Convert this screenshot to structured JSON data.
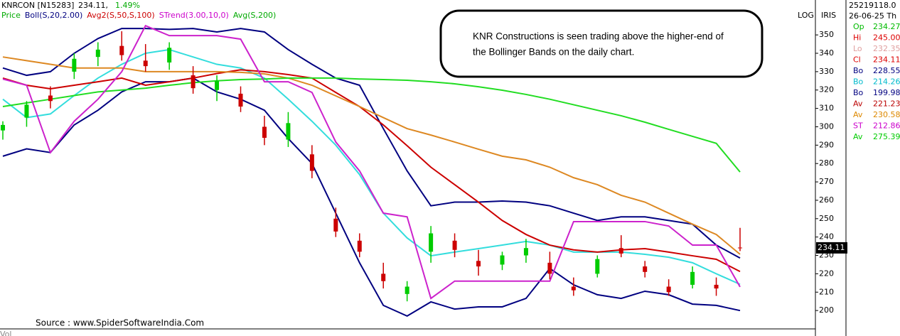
{
  "header": {
    "symbol": "KNRCON [N15283]",
    "price": "234.11,",
    "change": "1.49%",
    "legend": [
      {
        "text": "Price",
        "color": "#00aa00"
      },
      {
        "text": "Boll(S,20,2.00)",
        "color": "#000080"
      },
      {
        "text": "Avg2(S,50,S,100)",
        "color": "#cc0000"
      },
      {
        "text": "STrend(3.00,10,0)",
        "color": "#cc00cc"
      },
      {
        "text": "Avg(S,200)",
        "color": "#00aa00"
      }
    ]
  },
  "toolbar": [
    "LOG",
    "IRIS"
  ],
  "annotation": [
    "KNR Constructions is seen trading above the higher-end of",
    "the Bollinger Bands on the daily chart."
  ],
  "source": "Source : www.SpiderSoftwareIndia.Com",
  "volume_label": "Vol",
  "info_panel": {
    "volume": "25219118.0",
    "date": "26-06-25 Th",
    "rows": [
      {
        "label": "Op",
        "value": "234.27",
        "color": "#00bb00"
      },
      {
        "label": "Hi",
        "value": "245.00",
        "color": "#dd0000"
      },
      {
        "label": "Lo",
        "value": "232.35",
        "color": "#e0a0a0"
      },
      {
        "label": "Cl",
        "value": "234.11",
        "color": "#dd0000"
      },
      {
        "label": "Bo",
        "value": "228.55",
        "color": "#000080"
      },
      {
        "label": "Bo",
        "value": "214.26",
        "color": "#00bbcc"
      },
      {
        "label": "Bo",
        "value": "199.98",
        "color": "#000080"
      },
      {
        "label": "Av",
        "value": "221.23",
        "color": "#bb0000"
      },
      {
        "label": "Av",
        "value": "230.58",
        "color": "#dd8800"
      },
      {
        "label": "ST",
        "value": "212.86",
        "color": "#cc00cc"
      },
      {
        "label": "Av",
        "value": "275.39",
        "color": "#00cc00"
      }
    ]
  },
  "price_tag": "234.11",
  "chart_data": {
    "type": "candlestick",
    "categories": [
      null,
      null,
      null,
      null,
      null,
      null,
      null,
      null,
      null,
      null,
      null,
      null,
      null,
      null,
      null,
      null,
      null,
      null,
      null,
      null,
      null,
      null,
      null,
      null,
      null,
      null,
      null,
      null,
      null,
      null,
      null,
      null
    ],
    "open": [
      298,
      305,
      317,
      330,
      338,
      344,
      336,
      335,
      328,
      320,
      318,
      300,
      293,
      285,
      250,
      238,
      220,
      209,
      232,
      238,
      227,
      225,
      230,
      226,
      213,
      220,
      234,
      224,
      213,
      214,
      214,
      234.27
    ],
    "high": [
      303,
      314,
      322,
      340,
      346,
      352,
      345,
      346,
      333,
      328,
      322,
      306,
      308,
      290,
      256,
      242,
      226,
      216,
      246,
      242,
      233,
      232,
      239,
      232,
      218,
      230,
      241,
      227,
      217,
      224,
      218,
      245
    ],
    "low": [
      293,
      300,
      310,
      326,
      333,
      336,
      330,
      331,
      318,
      314,
      308,
      290,
      289,
      272,
      240,
      229,
      212,
      205,
      226,
      229,
      219,
      222,
      226,
      217,
      208,
      218,
      229,
      218,
      208,
      212,
      208,
      232.35
    ],
    "close": [
      301,
      312,
      314,
      337,
      342,
      339,
      333,
      343,
      321,
      325,
      311,
      294,
      302,
      276,
      243,
      232,
      216,
      213,
      242,
      233,
      224,
      230,
      234,
      220,
      211,
      228,
      231,
      221,
      210,
      221,
      212,
      234.11
    ],
    "up_color": "#00cc00",
    "down_color": "#cc0000",
    "overlays": [
      {
        "color": "#000080",
        "values": [
          332,
          328,
          330,
          340,
          348,
          353.5,
          353.5,
          353,
          353.5,
          351.6,
          353.5,
          351.6,
          342,
          334,
          326.5,
          322.6,
          299,
          276,
          257,
          259,
          259,
          259.6,
          259,
          257,
          253,
          249,
          251,
          251,
          249,
          247,
          235.6,
          228.55
        ]
      },
      {
        "color": "#000080",
        "values": [
          284,
          288,
          286,
          301,
          309,
          319,
          324.5,
          324.5,
          326.5,
          319,
          315,
          309,
          293.6,
          280,
          253,
          226,
          202.8,
          197,
          204.7,
          200.8,
          202,
          202,
          206.6,
          222.9,
          214,
          208.6,
          206.6,
          210.5,
          208.6,
          203.5,
          202.8,
          199.98
        ]
      },
      {
        "color": "#33dddd",
        "values": [
          315,
          305,
          307,
          317,
          326.5,
          334,
          340,
          342,
          338,
          334,
          332,
          326.5,
          315,
          303,
          290,
          274,
          253,
          239.5,
          229.8,
          231.8,
          233.7,
          235.6,
          237.6,
          235.6,
          231.8,
          231.8,
          231.8,
          230.6,
          229,
          226,
          220,
          214.26
        ]
      },
      {
        "color": "#cc0000",
        "values": [
          326.5,
          322.6,
          320.7,
          322.6,
          324.5,
          326.5,
          322.6,
          324.5,
          326.5,
          329,
          331,
          330,
          328.4,
          326.5,
          318.7,
          311,
          301,
          289.7,
          278,
          268.5,
          259,
          249,
          241.4,
          235.6,
          233,
          231.8,
          233,
          233.7,
          231.8,
          229.8,
          227.9,
          221.23
        ]
      },
      {
        "color": "#dd8822",
        "values": [
          338,
          336,
          334,
          332,
          332,
          332,
          330,
          330,
          330,
          330,
          329.6,
          328.8,
          326.5,
          322.6,
          316.8,
          311,
          305,
          299,
          295.5,
          291.7,
          287.8,
          284,
          282,
          278,
          272.3,
          268.5,
          262.7,
          259,
          253,
          247,
          241.4,
          230.58
        ]
      },
      {
        "color": "#22dd22",
        "values": [
          311,
          313,
          315,
          317,
          319,
          320,
          321,
          322.6,
          324,
          325,
          325.7,
          326,
          326.5,
          326.5,
          326.5,
          326,
          325.7,
          325.3,
          324.5,
          323.4,
          321.8,
          319.9,
          317.6,
          315,
          312,
          309,
          306,
          302.5,
          298.6,
          294.8,
          291,
          275.39
        ]
      },
      {
        "color": "#cc22cc",
        "values": [
          326,
          322.6,
          286,
          303,
          315,
          330,
          355,
          349.6,
          349.6,
          349.6,
          347.7,
          324.5,
          324.5,
          318.7,
          291.7,
          276,
          253,
          251,
          206.6,
          216,
          216,
          216,
          216,
          216,
          248.4,
          248.4,
          248.4,
          248.4,
          246,
          235.6,
          235.6,
          212.86
        ]
      }
    ],
    "ylim": [
      190,
      369
    ],
    "yticks": [
      200,
      210,
      220,
      230,
      240,
      250,
      260,
      270,
      280,
      290,
      300,
      310,
      320,
      330,
      340,
      350
    ]
  }
}
